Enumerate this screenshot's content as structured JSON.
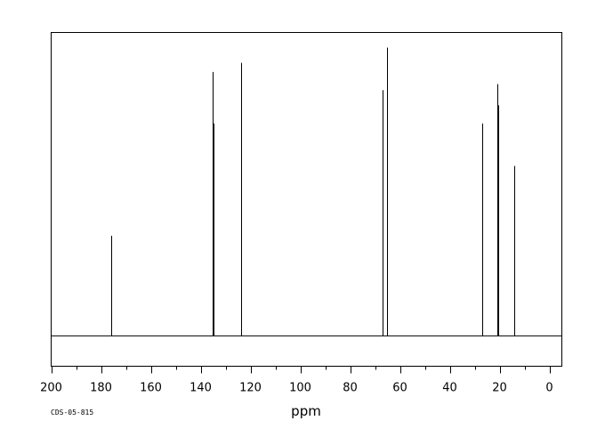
{
  "chart_data": {
    "type": "line",
    "title": "",
    "xlabel": "ppm",
    "ylabel": "",
    "xlim": [
      200,
      -5
    ],
    "ylim": [
      -10,
      100
    ],
    "grid": false,
    "x_ticks": [
      200,
      180,
      160,
      140,
      120,
      100,
      80,
      60,
      40,
      20,
      0
    ],
    "x_tick_labels": [
      "200",
      "180",
      "160",
      "140",
      "120",
      "100",
      "80",
      "60",
      "40",
      "20",
      "0"
    ],
    "baseline": 0,
    "peaks": [
      {
        "ppm": 175.8,
        "height": 33
      },
      {
        "ppm": 135.3,
        "height": 87
      },
      {
        "ppm": 134.9,
        "height": 70
      },
      {
        "ppm": 123.9,
        "height": 21
      },
      {
        "ppm": 123.6,
        "height": 90
      },
      {
        "ppm": 67.0,
        "height": 81
      },
      {
        "ppm": 65.3,
        "height": 95
      },
      {
        "ppm": 27.0,
        "height": 70
      },
      {
        "ppm": 21.0,
        "height": 83
      },
      {
        "ppm": 20.5,
        "height": 76
      },
      {
        "ppm": 14.0,
        "height": 56
      }
    ],
    "source_label": "CDS-05-815"
  }
}
